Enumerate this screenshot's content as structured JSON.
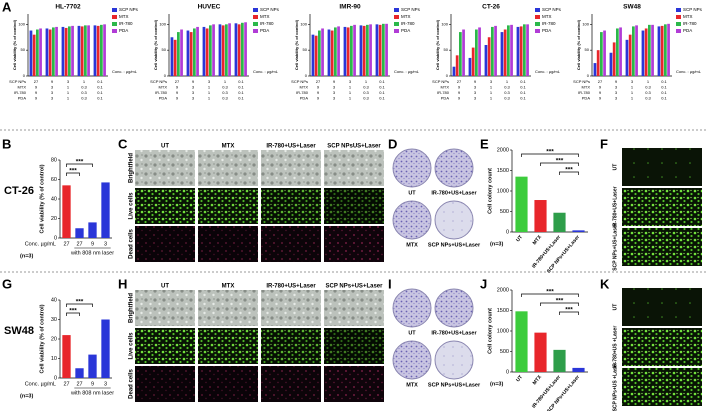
{
  "chart_data": [
    {
      "type": "grouped-bar",
      "title": "HL-7702",
      "ylabel": "Cell viability (% of control)",
      "ylim": [
        0,
        120
      ],
      "yticks": [
        0,
        50,
        100
      ],
      "series": [
        {
          "name": "SCP NPs",
          "color": "#2a36d8",
          "values": [
            88,
            92,
            95,
            97,
            98
          ]
        },
        {
          "name": "MTX",
          "color": "#e8262b",
          "values": [
            80,
            90,
            93,
            96,
            97
          ]
        },
        {
          "name": "IR-780",
          "color": "#2bb84a",
          "values": [
            90,
            94,
            96,
            98,
            99
          ]
        },
        {
          "name": "PDA",
          "color": "#b13cd6",
          "values": [
            92,
            95,
            97,
            98,
            100
          ]
        }
      ],
      "conc_label": "Conc. : µg/mL",
      "conc_table": [
        {
          "name": "SCP NPs",
          "values": [
            27,
            9,
            3,
            1,
            0.1
          ]
        },
        {
          "name": "MTX",
          "values": [
            9,
            3,
            1,
            0.3,
            0.1
          ]
        },
        {
          "name": "IR-780",
          "values": [
            9,
            3,
            1,
            0.3,
            0.1
          ]
        },
        {
          "name": "PDA",
          "values": [
            9,
            3,
            1,
            0.3,
            0.1
          ]
        }
      ]
    },
    {
      "type": "grouped-bar",
      "title": "HUVEC",
      "ylabel": "Cell viability (% of control)",
      "ylim": [
        0,
        120
      ],
      "yticks": [
        0,
        50,
        100
      ],
      "series": [
        {
          "name": "SCP NPs",
          "color": "#2a36d8",
          "values": [
            75,
            88,
            95,
            100,
            102
          ]
        },
        {
          "name": "MTX",
          "color": "#e8262b",
          "values": [
            70,
            85,
            92,
            98,
            100
          ]
        },
        {
          "name": "IR-780",
          "color": "#2bb84a",
          "values": [
            85,
            92,
            98,
            100,
            103
          ]
        },
        {
          "name": "PDA",
          "color": "#b13cd6",
          "values": [
            90,
            95,
            100,
            102,
            104
          ]
        }
      ],
      "conc_label": "Conc. : µg/mL",
      "conc_table": [
        {
          "name": "SCP NPs",
          "values": [
            27,
            9,
            3,
            1,
            0.1
          ]
        },
        {
          "name": "MTX",
          "values": [
            9,
            3,
            1,
            0.3,
            0.1
          ]
        },
        {
          "name": "IR-780",
          "values": [
            9,
            3,
            1,
            0.3,
            0.1
          ]
        },
        {
          "name": "PDA",
          "values": [
            9,
            3,
            1,
            0.3,
            0.1
          ]
        }
      ]
    },
    {
      "type": "grouped-bar",
      "title": "IMR-90",
      "ylabel": "Cell viability (% of control)",
      "ylim": [
        0,
        120
      ],
      "yticks": [
        0,
        50,
        100
      ],
      "series": [
        {
          "name": "SCP NPs",
          "color": "#2a36d8",
          "values": [
            80,
            90,
            95,
            98,
            100
          ]
        },
        {
          "name": "MTX",
          "color": "#e8262b",
          "values": [
            78,
            88,
            94,
            97,
            99
          ]
        },
        {
          "name": "IR-780",
          "color": "#2bb84a",
          "values": [
            88,
            94,
            97,
            99,
            101
          ]
        },
        {
          "name": "PDA",
          "color": "#b13cd6",
          "values": [
            92,
            96,
            99,
            100,
            101
          ]
        }
      ],
      "conc_label": "Conc. : µg/mL",
      "conc_table": [
        {
          "name": "SCP NPs",
          "values": [
            27,
            9,
            3,
            1,
            0.1
          ]
        },
        {
          "name": "MTX",
          "values": [
            9,
            3,
            1,
            0.3,
            0.1
          ]
        },
        {
          "name": "IR-780",
          "values": [
            9,
            3,
            1,
            0.3,
            0.1
          ]
        },
        {
          "name": "PDA",
          "values": [
            9,
            3,
            1,
            0.3,
            0.1
          ]
        }
      ]
    },
    {
      "type": "grouped-bar",
      "title": "CT-26",
      "ylabel": "Cell viability (% of control)",
      "ylim": [
        0,
        120
      ],
      "yticks": [
        0,
        50,
        100
      ],
      "series": [
        {
          "name": "SCP NPs",
          "color": "#2a36d8",
          "values": [
            18,
            35,
            60,
            85,
            95
          ]
        },
        {
          "name": "MTX",
          "color": "#e8262b",
          "values": [
            40,
            55,
            75,
            90,
            96
          ]
        },
        {
          "name": "IR-780",
          "color": "#2bb84a",
          "values": [
            85,
            90,
            95,
            98,
            100
          ]
        },
        {
          "name": "PDA",
          "color": "#b13cd6",
          "values": [
            90,
            94,
            97,
            99,
            100
          ]
        }
      ],
      "conc_label": "Conc. : µg/mL",
      "conc_table": [
        {
          "name": "SCP NPs",
          "values": [
            27,
            9,
            3,
            1,
            0.1
          ]
        },
        {
          "name": "MTX",
          "values": [
            9,
            3,
            1,
            0.3,
            0.1
          ]
        },
        {
          "name": "IR-780",
          "values": [
            9,
            3,
            1,
            0.3,
            0.1
          ]
        },
        {
          "name": "PDA",
          "values": [
            9,
            3,
            1,
            0.3,
            0.1
          ]
        }
      ]
    },
    {
      "type": "grouped-bar",
      "title": "SW48",
      "ylabel": "Cell viability (% of control)",
      "ylim": [
        0,
        120
      ],
      "yticks": [
        0,
        50,
        100
      ],
      "series": [
        {
          "name": "SCP NPs",
          "color": "#2a36d8",
          "values": [
            25,
            45,
            70,
            88,
            96
          ]
        },
        {
          "name": "MTX",
          "color": "#e8262b",
          "values": [
            50,
            65,
            80,
            92,
            97
          ]
        },
        {
          "name": "IR-780",
          "color": "#2bb84a",
          "values": [
            85,
            92,
            96,
            99,
            100
          ]
        },
        {
          "name": "PDA",
          "color": "#b13cd6",
          "values": [
            88,
            94,
            98,
            99,
            101
          ]
        }
      ],
      "conc_label": "Conc. : µg/mL",
      "conc_table": [
        {
          "name": "SCP NPs",
          "values": [
            27,
            9,
            3,
            1,
            0.1
          ]
        },
        {
          "name": "MTX",
          "values": [
            9,
            3,
            1,
            0.3,
            0.1
          ]
        },
        {
          "name": "IR-780",
          "values": [
            9,
            3,
            1,
            0.3,
            0.1
          ]
        },
        {
          "name": "PDA",
          "values": [
            9,
            3,
            1,
            0.3,
            0.1
          ]
        }
      ]
    },
    {
      "type": "bar",
      "side_label": "CT-26",
      "ylabel": "Cell viability (% of control)",
      "category_title": "Conc. µg/mL",
      "categories": [
        27,
        27,
        9,
        3
      ],
      "values": [
        54,
        10,
        16,
        57
      ],
      "colors": [
        "#e8262b",
        "#2a36d8",
        "#2a36d8",
        "#2a36d8"
      ],
      "ylim": [
        0,
        80
      ],
      "yticks": [
        0,
        20,
        40,
        60,
        80
      ],
      "note": "(n=3)",
      "bracket_label": "with 808 nm laser",
      "significance": [
        "***",
        "***"
      ]
    },
    {
      "type": "bar",
      "ylabel": "Cell colony count",
      "categories": [
        "UT",
        "MTX",
        "IR-780+US+Laser",
        "SCP NPs+US+Laser"
      ],
      "values": [
        1350,
        780,
        470,
        40
      ],
      "colors": [
        "#3ccc3c",
        "#e8262b",
        "#2e9e4a",
        "#2a36d8"
      ],
      "ylim": [
        0,
        2000
      ],
      "yticks": [
        0,
        500,
        1000,
        1500,
        2000
      ],
      "note": "(n=3)",
      "significance": [
        "***",
        "***",
        "***"
      ]
    },
    {
      "type": "bar",
      "side_label": "SW48",
      "ylabel": "Cell viability (% of control)",
      "category_title": "Conc. µg/mL",
      "categories": [
        27,
        27,
        9,
        3
      ],
      "values": [
        22,
        5,
        12,
        30
      ],
      "colors": [
        "#e8262b",
        "#2a36d8",
        "#2a36d8",
        "#2a36d8"
      ],
      "ylim": [
        0,
        40
      ],
      "yticks": [
        0,
        10,
        20,
        30,
        40
      ],
      "note": "(n=3)",
      "bracket_label": "with 808 nm laser",
      "significance": [
        "***",
        "***"
      ]
    },
    {
      "type": "bar",
      "ylabel": "Cell colony count",
      "categories": [
        "UT",
        "MTX",
        "IR-780+US+Laser",
        "SCP NPs+US+Laser"
      ],
      "values": [
        1480,
        960,
        540,
        100
      ],
      "colors": [
        "#3ccc3c",
        "#e8262b",
        "#2e9e4a",
        "#2a36d8"
      ],
      "ylim": [
        0,
        2000
      ],
      "yticks": [
        0,
        500,
        1000,
        1500,
        2000
      ],
      "note": "(n=3)",
      "significance": [
        "***",
        "***",
        "***"
      ]
    }
  ],
  "figure": {
    "letters": [
      "A",
      "B",
      "C",
      "D",
      "E",
      "F",
      "G",
      "H",
      "I",
      "J",
      "K"
    ],
    "C": {
      "columns": [
        "UT",
        "MTX",
        "IR-780+US+Laser",
        "SCP NPsUS+Laser"
      ],
      "rows": [
        "Brightfield",
        "Live cells",
        "Dead cells"
      ]
    },
    "D": {
      "plates": [
        "UT",
        "IR-780+US+Laser",
        "MTX",
        "SCP NPs+US+Laser"
      ]
    },
    "F": {
      "rows": [
        "UT",
        "IR-780+US+Laser",
        "SCP NPs+US+Laser"
      ]
    },
    "H": {
      "columns": [
        "UT",
        "MTX",
        "IR-780+US+Laser",
        "SCP NPs+US+Laser"
      ],
      "rows": [
        "Brightfield",
        "Live cells",
        "Dead cells"
      ]
    },
    "I": {
      "plates": [
        "UT",
        "IR-780+US+Laser",
        "MTX",
        "SCP NPs+US+Laser"
      ]
    },
    "K": {
      "rows": [
        "UT",
        "IR-780+US +Laser",
        "SCP NPs+US +Laser"
      ]
    }
  }
}
